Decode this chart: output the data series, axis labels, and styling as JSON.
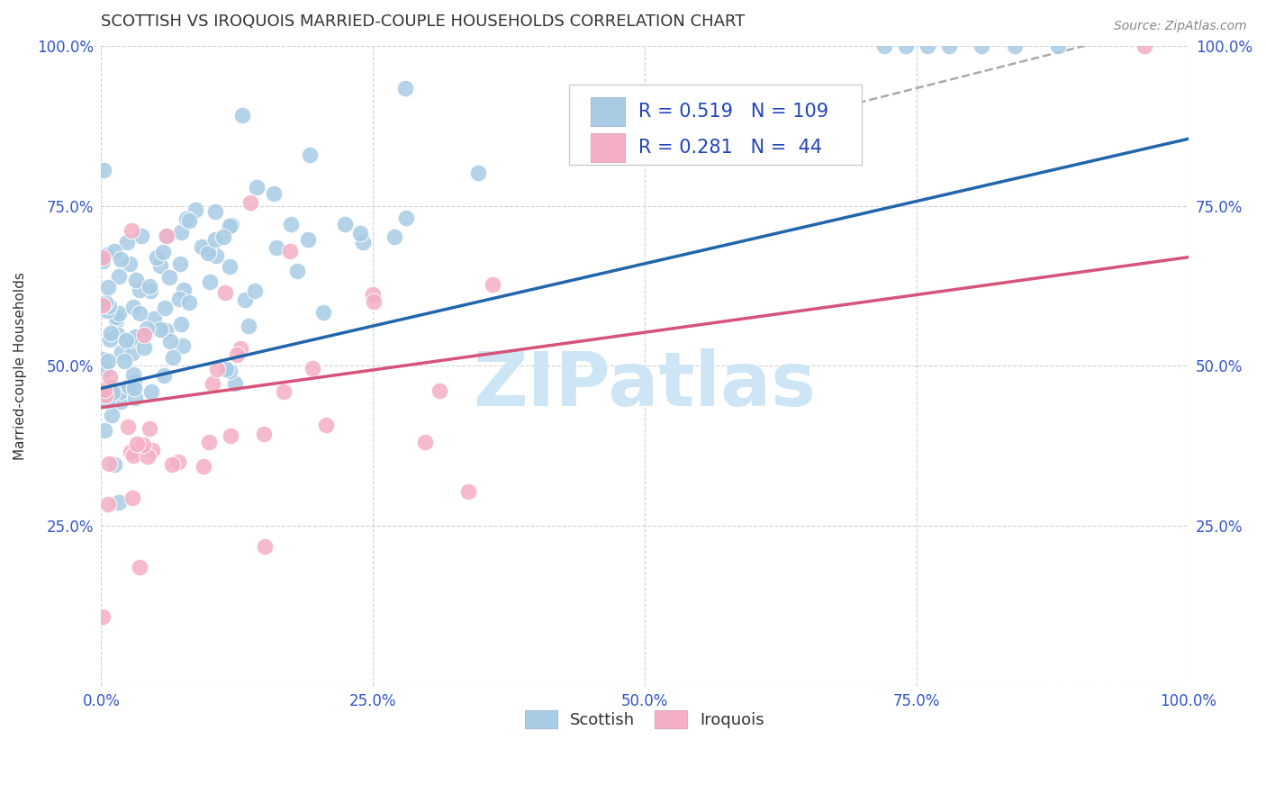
{
  "title": "SCOTTISH VS IROQUOIS MARRIED-COUPLE HOUSEHOLDS CORRELATION CHART",
  "source": "Source: ZipAtlas.com",
  "ylabel": "Married-couple Households",
  "R1": 0.519,
  "N1": 109,
  "R2": 0.281,
  "N2": 44,
  "blue_scatter_color": "#a8cce4",
  "pink_scatter_color": "#f4afc5",
  "blue_line_color": "#2166ac",
  "pink_line_color": "#d6537a",
  "dashed_color": "#aaaaaa",
  "blue_label": "Scottish",
  "pink_label": "Iroquois",
  "trend_blue": [
    0.0,
    0.465,
    1.0,
    0.855
  ],
  "trend_pink": [
    0.0,
    0.435,
    1.0,
    0.67
  ],
  "background_color": "#ffffff",
  "grid_color": "#cccccc",
  "watermark_text": "ZIPatlas",
  "watermark_color": "#cde5f5",
  "title_color": "#333333",
  "tick_color": "#3355cc",
  "ylabel_color": "#333333",
  "legend_text_color": "#2244bb",
  "title_fontsize": 13,
  "tick_fontsize": 12,
  "legend_fontsize": 15,
  "ylabel_fontsize": 11,
  "source_fontsize": 10,
  "scatter_size": 180,
  "scatter_alpha": 0.85,
  "scatter_edgecolor": "white",
  "scatter_linewidth": 0.8
}
